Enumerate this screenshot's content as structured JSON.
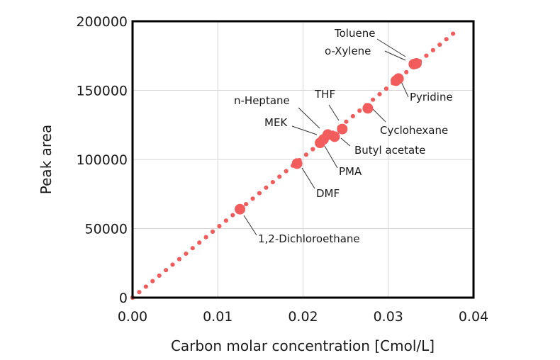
{
  "chart_data": {
    "type": "scatter",
    "title": "",
    "xlabel": "Carbon molar concentration [Cmol/L]",
    "ylabel": "Peak area",
    "xlim": [
      0,
      0.04
    ],
    "ylim": [
      0,
      200000
    ],
    "xticks": [
      0,
      0.01,
      0.02,
      0.03,
      0.04
    ],
    "yticks": [
      0,
      50000,
      100000,
      150000,
      200000
    ],
    "xtick_labels": [
      "0.00",
      "0.01",
      "0.02",
      "0.03",
      "0.04"
    ],
    "ytick_labels": [
      "0",
      "50000",
      "100000",
      "150000",
      "200000"
    ],
    "grid": true,
    "colors": {
      "points": "#f25c5c",
      "fit": "#f25c5c"
    },
    "fit_line": {
      "style": "dotted",
      "x": [
        0,
        0.0376
      ],
      "y": [
        0,
        191000
      ]
    },
    "points": [
      {
        "label": "1,2-Dichloroethane",
        "x": 0.0126,
        "y": 64000
      },
      {
        "label": "DMF",
        "x": 0.0193,
        "y": 97000
      },
      {
        "label": "PMA",
        "x": 0.022,
        "y": 112000
      },
      {
        "label": "MEK",
        "x": 0.0224,
        "y": 114500
      },
      {
        "label": "n-Heptane",
        "x": 0.0229,
        "y": 118000
      },
      {
        "label": "Butyl acetate",
        "x": 0.0237,
        "y": 116500
      },
      {
        "label": "THF",
        "x": 0.0246,
        "y": 122000
      },
      {
        "label": "Cyclohexane",
        "x": 0.0276,
        "y": 137000
      },
      {
        "label": "Pyridine",
        "x": 0.0309,
        "y": 157000
      },
      {
        "label": "Pyridine",
        "x": 0.0312,
        "y": 158500
      },
      {
        "label": "o-Xylene",
        "x": 0.033,
        "y": 169000
      },
      {
        "label": "Toluene",
        "x": 0.0333,
        "y": 169500
      }
    ],
    "annotations": [
      {
        "text": "Toluene",
        "point_index": 11
      },
      {
        "text": "o-Xylene",
        "point_index": 10
      },
      {
        "text": "Pyridine",
        "point_index": 9
      },
      {
        "text": "Cyclohexane",
        "point_index": 7
      },
      {
        "text": "THF",
        "point_index": 6
      },
      {
        "text": "n-Heptane",
        "point_index": 4
      },
      {
        "text": "MEK",
        "point_index": 3
      },
      {
        "text": "Butyl acetate",
        "point_index": 5
      },
      {
        "text": "PMA",
        "point_index": 2
      },
      {
        "text": "DMF",
        "point_index": 1
      },
      {
        "text": "1,2-Dichloroethane",
        "point_index": 0
      }
    ]
  }
}
